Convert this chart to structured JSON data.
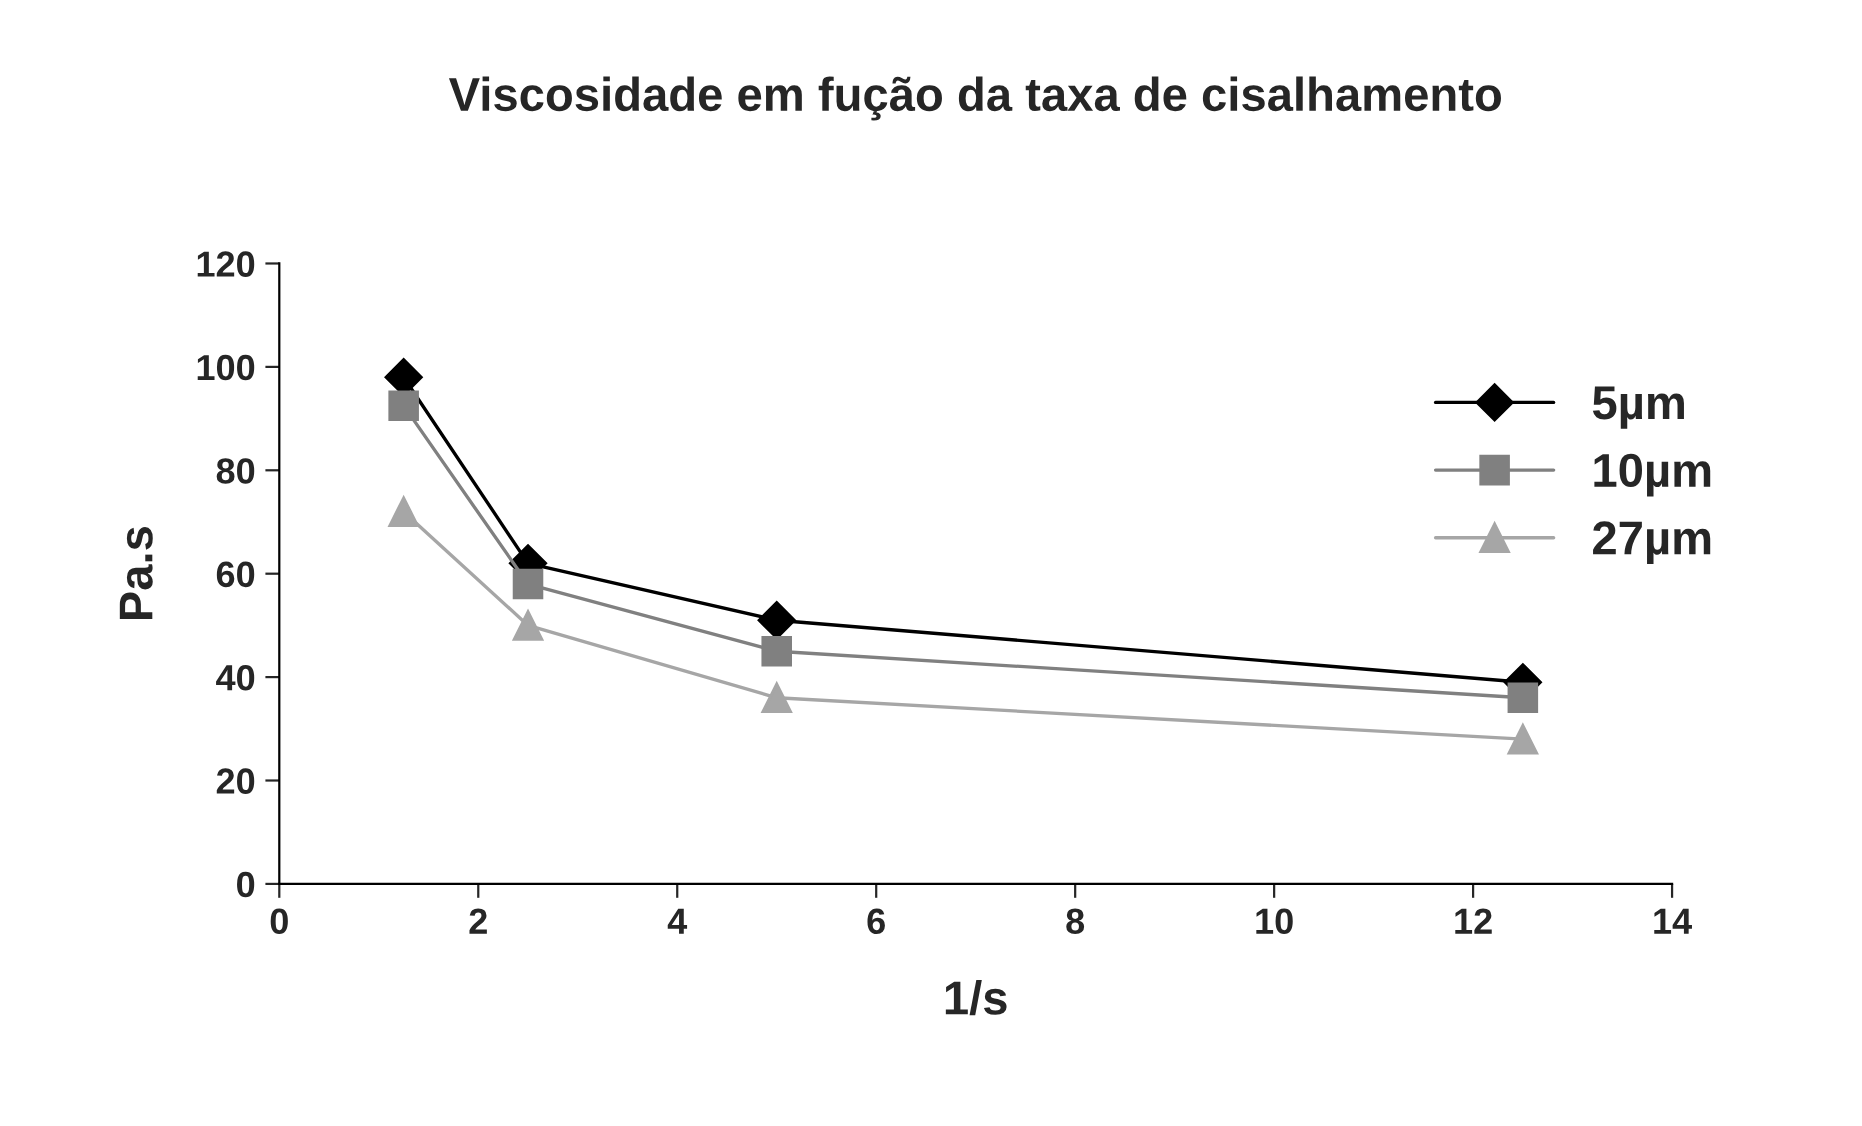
{
  "chart_data": {
    "type": "line",
    "title": "Viscosidade em fução da taxa de cisalhamento",
    "xlabel": "1/s",
    "ylabel": "Pa.s",
    "x": [
      1.25,
      2.5,
      5,
      12.5
    ],
    "series": [
      {
        "name": "5µm",
        "color": "#000000",
        "marker": "diamond",
        "values": [
          98,
          62,
          51,
          39
        ]
      },
      {
        "name": "10µm",
        "color": "#808080",
        "marker": "square",
        "values": [
          92.5,
          58,
          45,
          36
        ]
      },
      {
        "name": "27µm",
        "color": "#a6a6a6",
        "marker": "triangle",
        "values": [
          72,
          50,
          36,
          28
        ]
      }
    ],
    "xlim": [
      0,
      14
    ],
    "xticks": [
      0,
      2,
      4,
      6,
      8,
      10,
      12,
      14
    ],
    "ylim": [
      0,
      120
    ],
    "yticks": [
      0,
      20,
      40,
      60,
      80,
      100,
      120
    ],
    "grid": false,
    "legend": "right",
    "line_style": "solid"
  }
}
